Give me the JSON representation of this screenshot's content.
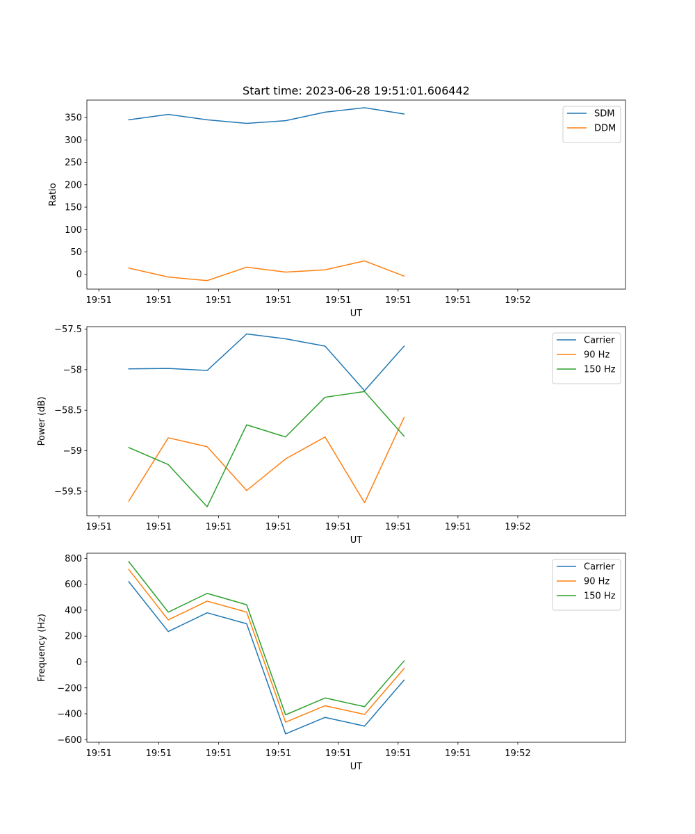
{
  "chart_data": {
    "title": "Start time: 2023-06-28 19:51:01.606442",
    "x_ticks": [
      "19:51",
      "19:51",
      "19:51",
      "19:51",
      "19:51",
      "19:51",
      "19:51",
      "19:52"
    ],
    "xlim": [
      0,
      9.0
    ],
    "x_tick_positions": [
      0.2,
      1.2,
      2.2,
      3.2,
      4.2,
      5.2,
      6.2,
      7.2
    ],
    "x": [
      0.7,
      1.36,
      2.01,
      2.67,
      3.32,
      3.98,
      4.64,
      5.3
    ],
    "panels": [
      {
        "type": "line",
        "ylabel": "Ratio",
        "xlabel": "UT",
        "ylim": [
          -33,
          389
        ],
        "yticks": [
          0,
          50,
          100,
          150,
          200,
          250,
          300,
          350
        ],
        "legend": "top-right",
        "series": [
          {
            "name": "SDM",
            "color": "#1f77b4",
            "values": [
              345,
              357,
              345,
              337,
              343,
              362,
              372,
              358
            ]
          },
          {
            "name": "DDM",
            "color": "#ff7f0e",
            "values": [
              14,
              -6,
              -14,
              16,
              5,
              10,
              30,
              -4
            ]
          }
        ]
      },
      {
        "type": "line",
        "ylabel": "Power (dB)",
        "xlabel": "UT",
        "ylim": [
          -59.8,
          -57.47
        ],
        "yticks": [
          -59.5,
          -59.0,
          -58.5,
          -58.0,
          -57.5
        ],
        "legend": "top-right",
        "series": [
          {
            "name": "Carrier",
            "color": "#1f77b4",
            "values": [
              -57.99,
              -57.985,
              -58.01,
              -57.56,
              -57.62,
              -57.71,
              -58.26,
              -57.71
            ]
          },
          {
            "name": "90 Hz",
            "color": "#ff7f0e",
            "values": [
              -59.62,
              -58.84,
              -58.95,
              -59.49,
              -59.1,
              -58.83,
              -59.64,
              -58.59
            ]
          },
          {
            "name": "150 Hz",
            "color": "#2ca02c",
            "values": [
              -58.96,
              -59.17,
              -59.69,
              -58.68,
              -58.83,
              -58.34,
              -58.27,
              -58.82
            ]
          }
        ]
      },
      {
        "type": "line",
        "ylabel": "Frequency (Hz)",
        "xlabel": "UT",
        "ylim": [
          -620,
          840
        ],
        "yticks": [
          -600,
          -400,
          -200,
          0,
          200,
          400,
          600,
          800
        ],
        "legend": "top-right",
        "series": [
          {
            "name": "Carrier",
            "color": "#1f77b4",
            "values": [
              620,
              235,
              380,
              295,
              -555,
              -428,
              -495,
              -140
            ]
          },
          {
            "name": "90 Hz",
            "color": "#ff7f0e",
            "values": [
              715,
              325,
              470,
              385,
              -465,
              -338,
              -405,
              -50
            ]
          },
          {
            "name": "150 Hz",
            "color": "#2ca02c",
            "values": [
              775,
              385,
              530,
              442,
              -408,
              -278,
              -345,
              8
            ]
          }
        ]
      }
    ]
  }
}
